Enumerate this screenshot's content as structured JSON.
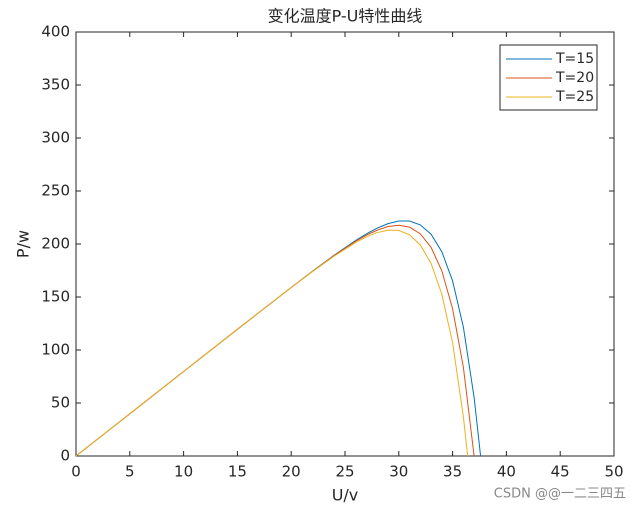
{
  "chart_data": {
    "type": "line",
    "title": "变化温度P-U特性曲线",
    "x_label": "U/v",
    "y_label": "P/w",
    "xlim": [
      0,
      50
    ],
    "xticks": [
      0,
      5,
      10,
      15,
      20,
      25,
      30,
      35,
      40,
      45,
      50
    ],
    "ylim": [
      0,
      400
    ],
    "yticks": [
      0,
      50,
      100,
      150,
      200,
      250,
      300,
      350,
      400
    ],
    "legend": "upper right",
    "series": [
      {
        "name": "T=15",
        "color": "#0072bd",
        "x": [
          0,
          5,
          10,
          15,
          20,
          22,
          24,
          26,
          27,
          28,
          29,
          30,
          31,
          32,
          33,
          34,
          35,
          36,
          37,
          37.6
        ],
        "values": [
          0,
          39.8,
          79.7,
          119.5,
          159.0,
          174.5,
          189.5,
          203.4,
          209.6,
          215.0,
          219.2,
          221.7,
          221.7,
          218.0,
          209.2,
          192.7,
          165.2,
          121.7,
          55.2,
          0
        ]
      },
      {
        "name": "T=20",
        "color": "#d95319",
        "x": [
          0,
          5,
          10,
          15,
          20,
          22,
          24,
          26,
          27,
          28,
          29,
          30,
          31,
          32,
          33,
          34,
          35,
          36,
          37
        ],
        "values": [
          0,
          39.8,
          79.7,
          119.5,
          159.0,
          174.3,
          189.1,
          202.6,
          208.4,
          213.1,
          216.5,
          217.7,
          215.9,
          209.6,
          196.8,
          174.6,
          138.9,
          83.8,
          0
        ]
      },
      {
        "name": "T=25",
        "color": "#edb120",
        "x": [
          0,
          5,
          10,
          15,
          20,
          22,
          24,
          26,
          27,
          28,
          29,
          30,
          31,
          32,
          33,
          34,
          35,
          36,
          36.4
        ],
        "values": [
          0,
          39.8,
          79.7,
          119.5,
          159.0,
          174.1,
          188.6,
          201.5,
          206.8,
          210.8,
          213.1,
          212.8,
          208.7,
          199.1,
          181.6,
          152.6,
          106.8,
          37.1,
          0
        ]
      }
    ],
    "watermark": "CSDN @@一二三四五"
  }
}
